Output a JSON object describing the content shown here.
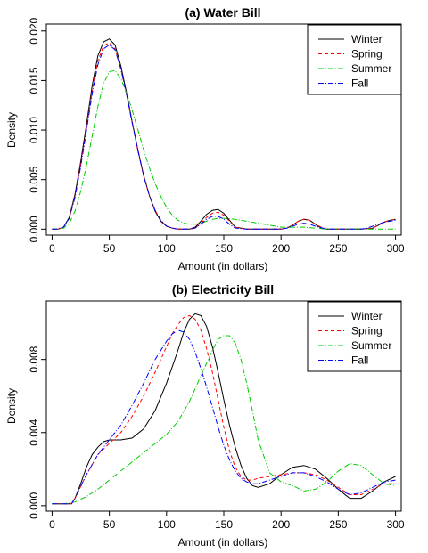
{
  "chart_data": [
    {
      "type": "line",
      "title": "(a) Water Bill",
      "xlabel": "Amount (in dollars)",
      "ylabel": "Density",
      "xlim": [
        -5,
        305
      ],
      "ylim": [
        -0.0006,
        0.0207
      ],
      "xticks": [
        0,
        50,
        100,
        150,
        200,
        250,
        300
      ],
      "xtick_labels": [
        "0",
        "50",
        "100",
        "150",
        "200",
        "250",
        "300"
      ],
      "yticks": [
        0,
        0.005,
        0.01,
        0.015,
        0.02
      ],
      "ytick_labels": [
        "0.000",
        "0.005",
        "0.010",
        "0.015",
        "0.020"
      ],
      "grid": false,
      "legend_position": "top-right",
      "series": [
        {
          "name": "Winter",
          "color": "#000000",
          "dash": "none",
          "x": [
            0,
            5,
            10,
            15,
            20,
            25,
            30,
            35,
            40,
            45,
            50,
            55,
            60,
            65,
            70,
            75,
            80,
            85,
            90,
            95,
            100,
            105,
            110,
            115,
            120,
            125,
            130,
            135,
            140,
            145,
            150,
            155,
            160,
            170,
            180,
            190,
            200,
            205,
            210,
            215,
            220,
            225,
            230,
            235,
            240,
            250,
            260,
            270,
            280,
            285,
            290,
            295,
            300
          ],
          "y": [
            0,
            0,
            0.0002,
            0.0012,
            0.0035,
            0.0068,
            0.0105,
            0.0145,
            0.0175,
            0.0189,
            0.0192,
            0.0186,
            0.0165,
            0.0138,
            0.0108,
            0.008,
            0.0054,
            0.0034,
            0.0018,
            0.0008,
            0.0003,
            0.0001,
            0,
            0,
            0,
            0.0002,
            0.0008,
            0.0015,
            0.0019,
            0.002,
            0.0016,
            0.0009,
            0.0002,
            0,
            0,
            0,
            0,
            0.0001,
            0.0004,
            0.0008,
            0.001,
            0.0009,
            0.0005,
            0.0001,
            0,
            0,
            0,
            0,
            0.0001,
            0.0004,
            0.0007,
            0.0009,
            0.001
          ]
        },
        {
          "name": "Spring",
          "color": "#ff0000",
          "dash": "4 3",
          "x": [
            0,
            5,
            10,
            15,
            20,
            25,
            30,
            35,
            40,
            45,
            50,
            55,
            60,
            65,
            70,
            75,
            80,
            85,
            90,
            95,
            100,
            105,
            110,
            115,
            120,
            125,
            130,
            135,
            140,
            145,
            150,
            155,
            160,
            170,
            180,
            190,
            200,
            205,
            210,
            215,
            220,
            225,
            230,
            235,
            240,
            250,
            260,
            270,
            280,
            285,
            290,
            295,
            300
          ],
          "y": [
            0,
            0,
            0.0002,
            0.0011,
            0.0033,
            0.0065,
            0.0101,
            0.014,
            0.017,
            0.0185,
            0.0188,
            0.0182,
            0.0162,
            0.0136,
            0.0107,
            0.0079,
            0.0054,
            0.0034,
            0.0019,
            0.0009,
            0.0003,
            0.0001,
            0,
            0,
            0,
            0.0001,
            0.0006,
            0.0012,
            0.0016,
            0.0017,
            0.0014,
            0.0008,
            0.0002,
            0,
            0,
            0,
            0,
            0.0001,
            0.0004,
            0.0008,
            0.001,
            0.0009,
            0.0005,
            0.0002,
            0,
            0,
            0,
            0,
            0.0001,
            0.0004,
            0.0007,
            0.0009,
            0.001
          ]
        },
        {
          "name": "Summer",
          "color": "#00cc00",
          "dash": "6 2 1 2",
          "x": [
            0,
            5,
            10,
            15,
            20,
            25,
            30,
            35,
            40,
            45,
            50,
            55,
            60,
            65,
            70,
            75,
            80,
            85,
            90,
            95,
            100,
            105,
            110,
            115,
            120,
            125,
            130,
            135,
            140,
            145,
            150,
            160,
            170,
            180,
            190,
            200,
            210,
            220,
            230,
            240,
            250,
            260,
            270,
            280,
            290,
            300
          ],
          "y": [
            0,
            0,
            0.0001,
            0.0006,
            0.0018,
            0.0038,
            0.0064,
            0.0094,
            0.0124,
            0.0147,
            0.0159,
            0.016,
            0.0152,
            0.0138,
            0.012,
            0.01,
            0.008,
            0.0062,
            0.0046,
            0.0033,
            0.0022,
            0.0014,
            0.0009,
            0.0006,
            0.0005,
            0.0005,
            0.0006,
            0.0008,
            0.001,
            0.0011,
            0.0011,
            0.001,
            0.0008,
            0.0006,
            0.0004,
            0.0002,
            0.0002,
            0.0002,
            0.0001,
            0,
            0,
            0,
            0,
            0,
            0,
            0
          ]
        },
        {
          "name": "Fall",
          "color": "#0000ff",
          "dash": "6 2 1 2",
          "x": [
            0,
            5,
            10,
            15,
            20,
            25,
            30,
            35,
            40,
            45,
            50,
            55,
            60,
            65,
            70,
            75,
            80,
            85,
            90,
            95,
            100,
            105,
            110,
            115,
            120,
            125,
            130,
            135,
            140,
            145,
            150,
            155,
            160,
            170,
            180,
            190,
            200,
            205,
            210,
            215,
            220,
            225,
            230,
            240,
            250,
            260,
            270,
            275,
            280,
            285,
            290,
            295,
            300
          ],
          "y": [
            0,
            0,
            0.0002,
            0.0011,
            0.0032,
            0.0063,
            0.0099,
            0.0137,
            0.0166,
            0.0182,
            0.0186,
            0.0181,
            0.0162,
            0.0136,
            0.0107,
            0.0079,
            0.0054,
            0.0034,
            0.0019,
            0.0009,
            0.0003,
            0.0001,
            0,
            0,
            0,
            0.0001,
            0.0005,
            0.001,
            0.0013,
            0.0013,
            0.001,
            0.0005,
            0.0001,
            0,
            0,
            0,
            0,
            0.0001,
            0.0003,
            0.0005,
            0.0006,
            0.0005,
            0.0003,
            0,
            0,
            0,
            0,
            0.0001,
            0.0003,
            0.0005,
            0.0007,
            0.0008,
            0.0009
          ]
        }
      ]
    },
    {
      "type": "line",
      "title": "(b) Electricity Bill",
      "xlabel": "Amount (in dollars)",
      "ylabel": "Density",
      "xlim": [
        -5,
        305
      ],
      "ylim": [
        -0.0003,
        0.0112
      ],
      "xticks": [
        0,
        50,
        100,
        150,
        200,
        250,
        300
      ],
      "xtick_labels": [
        "0",
        "50",
        "100",
        "150",
        "200",
        "250",
        "300"
      ],
      "yticks": [
        0,
        0.004,
        0.008
      ],
      "ytick_labels": [
        "0.000",
        "0.004",
        "0.008"
      ],
      "grid": false,
      "legend_position": "top-right",
      "series": [
        {
          "name": "Winter",
          "color": "#000000",
          "dash": "none",
          "x": [
            0,
            10,
            17,
            20,
            25,
            30,
            35,
            40,
            45,
            50,
            55,
            60,
            70,
            80,
            90,
            100,
            110,
            115,
            120,
            125,
            130,
            135,
            140,
            145,
            150,
            155,
            160,
            165,
            170,
            175,
            180,
            190,
            200,
            210,
            220,
            230,
            240,
            250,
            260,
            270,
            280,
            290,
            300
          ],
          "y": [
            0.0001,
            0.0001,
            0.0001,
            0.0004,
            0.0012,
            0.0021,
            0.0028,
            0.0032,
            0.0035,
            0.0036,
            0.0036,
            0.0036,
            0.0037,
            0.0042,
            0.0052,
            0.0067,
            0.0085,
            0.0095,
            0.0102,
            0.0105,
            0.0104,
            0.0098,
            0.0087,
            0.0073,
            0.0058,
            0.0044,
            0.0032,
            0.0022,
            0.0015,
            0.0011,
            0.001,
            0.0012,
            0.0017,
            0.0021,
            0.0022,
            0.002,
            0.0015,
            0.0009,
            0.0004,
            0.0004,
            0.0008,
            0.0013,
            0.0016
          ]
        },
        {
          "name": "Spring",
          "color": "#ff0000",
          "dash": "4 3",
          "x": [
            0,
            10,
            17,
            20,
            30,
            40,
            50,
            60,
            70,
            80,
            90,
            100,
            105,
            110,
            115,
            120,
            125,
            130,
            135,
            140,
            145,
            150,
            155,
            160,
            165,
            170,
            175,
            180,
            190,
            200,
            210,
            220,
            230,
            240,
            250,
            260,
            270,
            280,
            290,
            300
          ],
          "y": [
            0.0001,
            0.0001,
            0.0001,
            0.0004,
            0.0017,
            0.0028,
            0.0034,
            0.004,
            0.0049,
            0.006,
            0.0073,
            0.0087,
            0.0094,
            0.0099,
            0.0103,
            0.0104,
            0.0102,
            0.0096,
            0.0086,
            0.0073,
            0.0058,
            0.0043,
            0.003,
            0.0021,
            0.0016,
            0.0014,
            0.0014,
            0.0015,
            0.0016,
            0.0017,
            0.0018,
            0.0018,
            0.0017,
            0.0014,
            0.001,
            0.0006,
            0.0006,
            0.0009,
            0.0012,
            0.0012
          ]
        },
        {
          "name": "Summer",
          "color": "#00cc00",
          "dash": "6 2 1 2",
          "x": [
            0,
            10,
            20,
            30,
            40,
            50,
            60,
            70,
            80,
            90,
            100,
            110,
            120,
            130,
            140,
            145,
            150,
            155,
            160,
            165,
            170,
            175,
            180,
            190,
            200,
            210,
            220,
            230,
            240,
            250,
            260,
            270,
            280,
            290,
            300
          ],
          "y": [
            0.0001,
            0.0001,
            0.0002,
            0.0005,
            0.0009,
            0.0014,
            0.0019,
            0.0024,
            0.0029,
            0.0034,
            0.0039,
            0.0046,
            0.0057,
            0.0071,
            0.0085,
            0.0091,
            0.0093,
            0.0093,
            0.0089,
            0.008,
            0.0067,
            0.0052,
            0.0036,
            0.0018,
            0.0013,
            0.0011,
            0.0008,
            0.0009,
            0.0013,
            0.0019,
            0.0023,
            0.0022,
            0.0017,
            0.0012,
            0.0011
          ]
        },
        {
          "name": "Fall",
          "color": "#0000ff",
          "dash": "6 2 1 2",
          "x": [
            0,
            10,
            17,
            20,
            30,
            40,
            50,
            60,
            70,
            80,
            90,
            100,
            105,
            110,
            115,
            120,
            125,
            130,
            135,
            140,
            145,
            150,
            155,
            160,
            165,
            170,
            175,
            180,
            190,
            200,
            210,
            220,
            230,
            240,
            250,
            260,
            270,
            280,
            290,
            300
          ],
          "y": [
            0.0001,
            0.0001,
            0.0001,
            0.0004,
            0.0017,
            0.0028,
            0.0036,
            0.0044,
            0.0055,
            0.0067,
            0.008,
            0.009,
            0.0094,
            0.0096,
            0.0095,
            0.0091,
            0.0084,
            0.0075,
            0.0065,
            0.0054,
            0.0043,
            0.0033,
            0.0025,
            0.0019,
            0.0015,
            0.0013,
            0.0012,
            0.0012,
            0.0014,
            0.0016,
            0.0018,
            0.0018,
            0.0016,
            0.0013,
            0.0009,
            0.0006,
            0.0007,
            0.001,
            0.0013,
            0.0014
          ]
        }
      ]
    }
  ]
}
